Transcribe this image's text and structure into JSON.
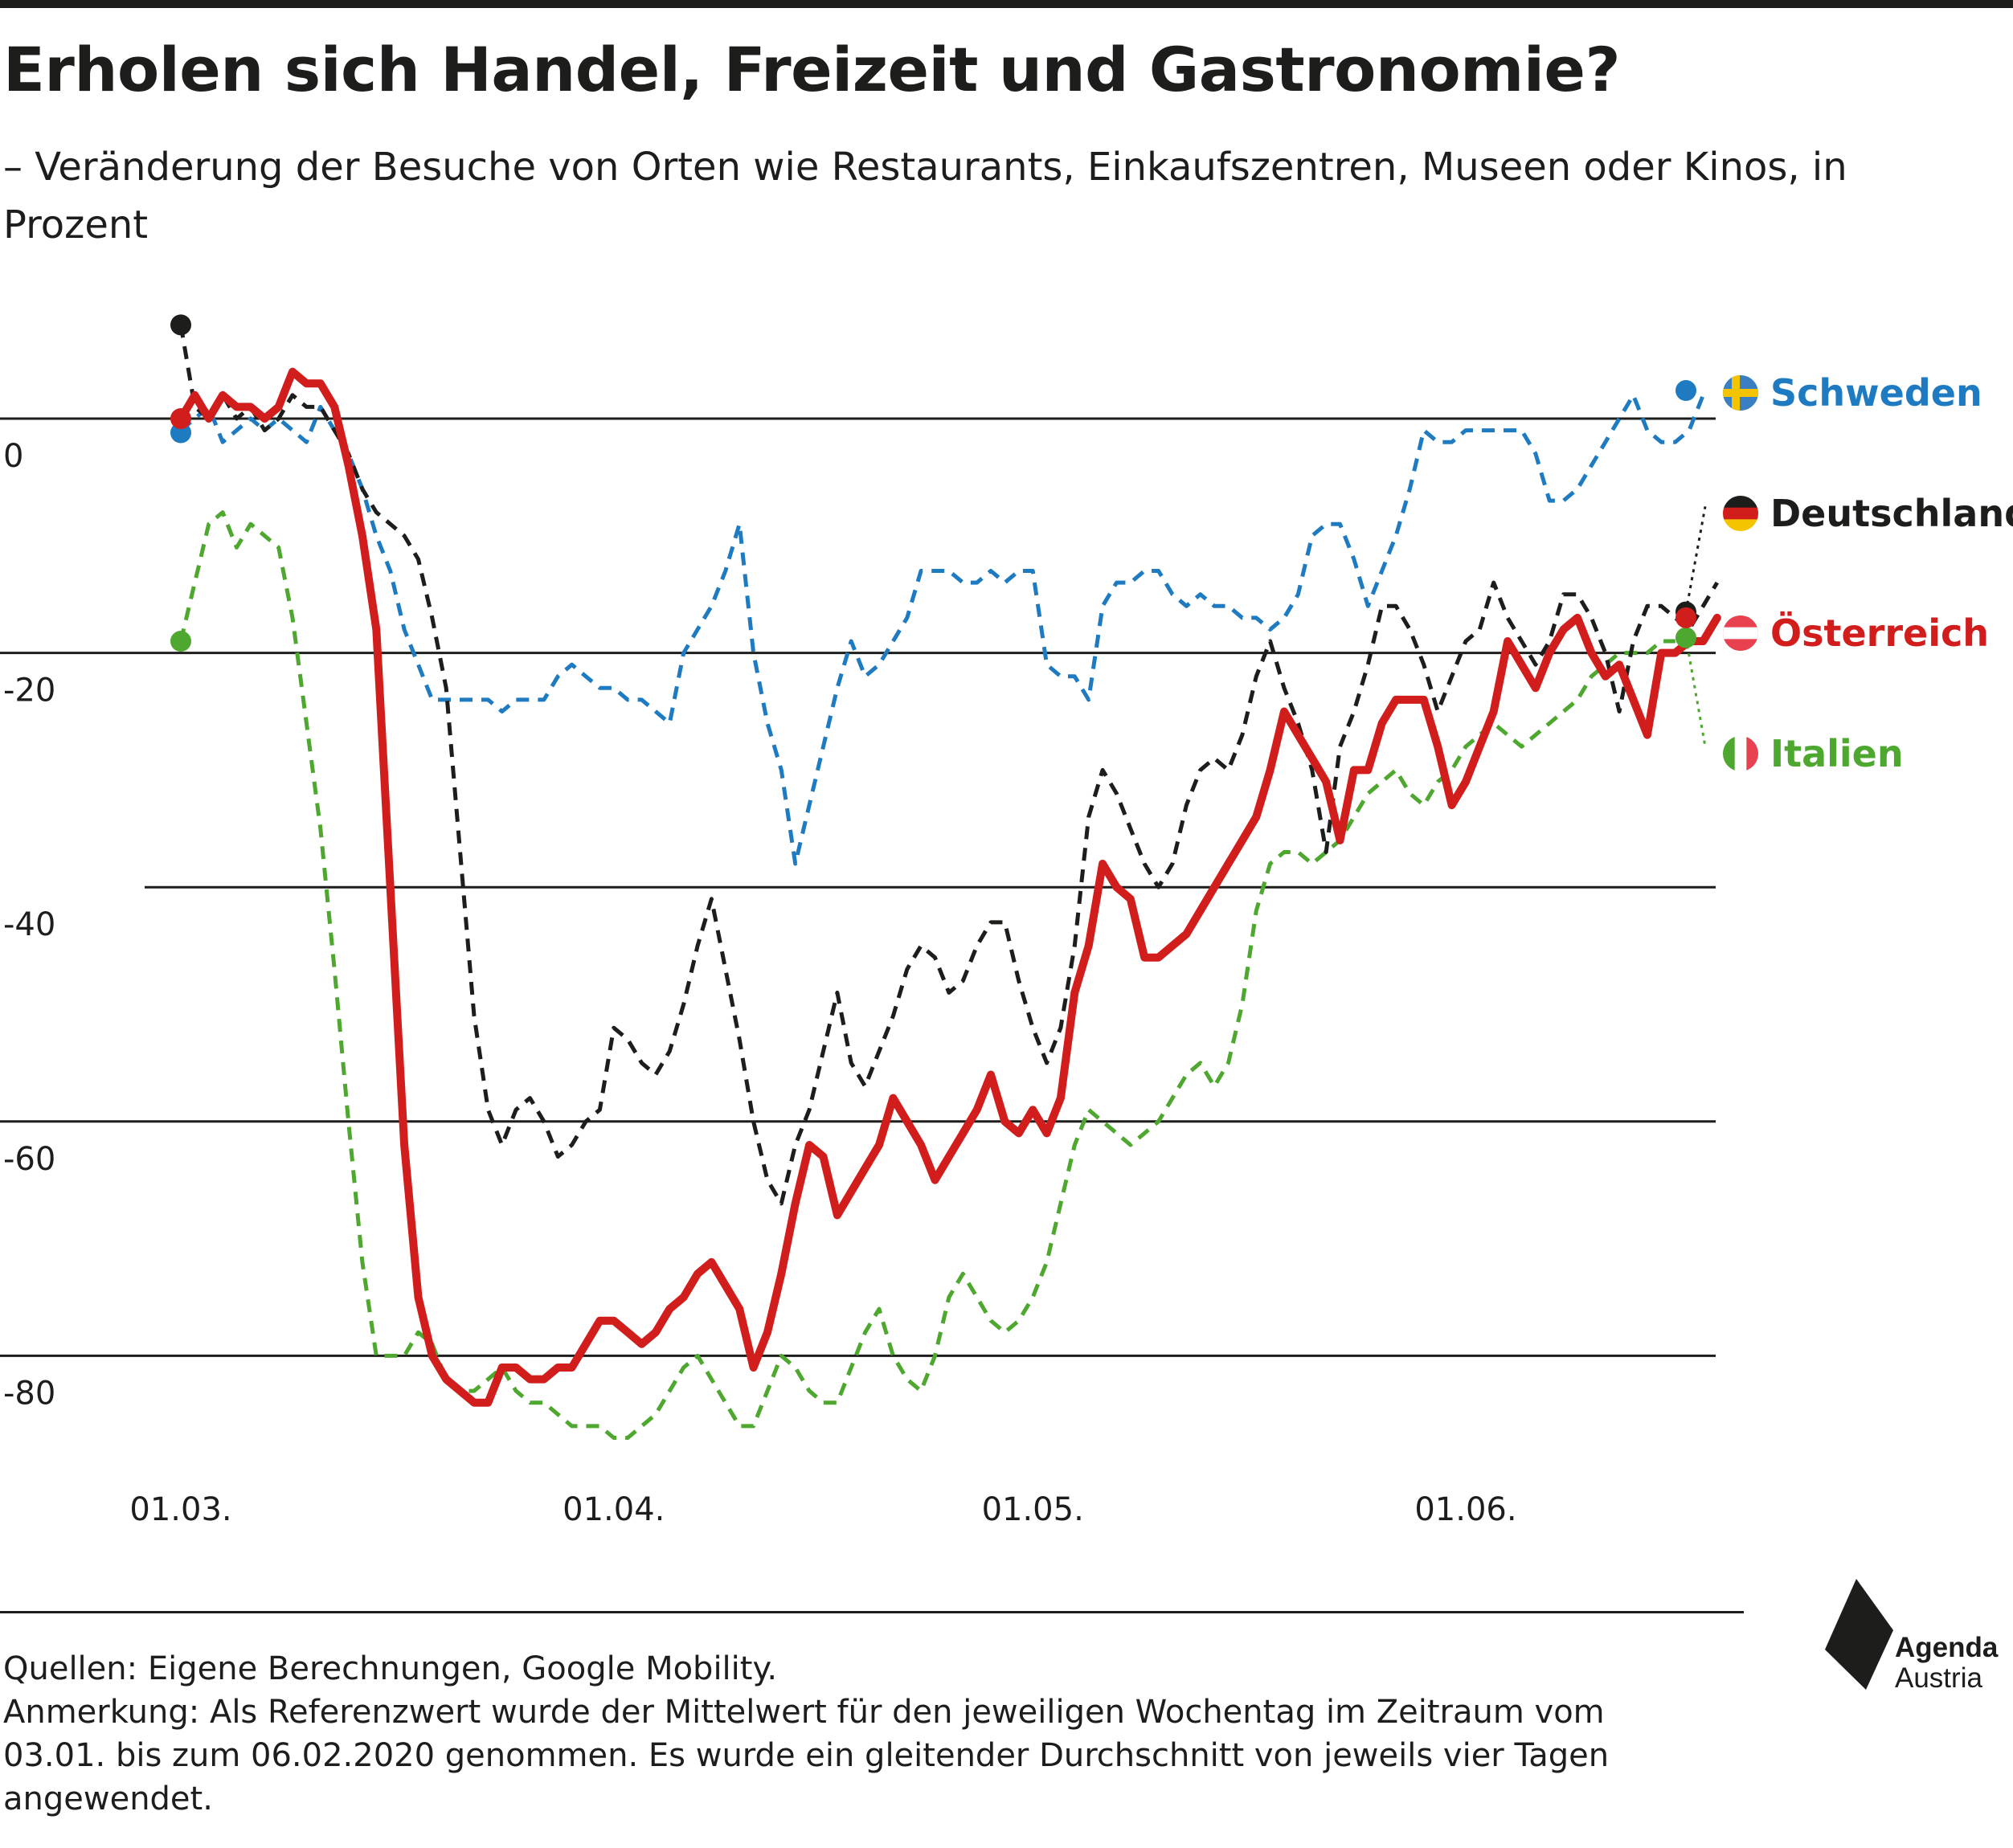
{
  "title": "Erholen sich Handel, Freizeit und Gastronomie?",
  "subtitle": "– Veränderung der Besuche von Orten wie Restaurants, Einkaufszentren, Museen oder Kinos, in Prozent",
  "footer": {
    "sources": "Quellen: Eigene Berechnungen, Google Mobility.",
    "note": "Anmerkung: Als Referenzwert wurde der Mittelwert für den jeweiligen Wochentag im Zeitraum vom 03.01. bis zum 06.02.2020 genommen. Es wurde ein gleitender Durchschnitt von jeweils vier Tagen angewendet."
  },
  "logo": {
    "line1": "Agenda",
    "line2": "Austria"
  },
  "chart_data": {
    "type": "line",
    "title": "Erholen sich Handel, Freizeit und Gastronomie?",
    "subtitle": "– Veränderung der Besuche von Orten wie Restaurants, Einkaufszentren, Museen oder Kinos, in Prozent",
    "ylim": [
      -90,
      10
    ],
    "yticks": [
      0,
      -20,
      -40,
      -60,
      -80
    ],
    "xticks": [
      {
        "day": 0,
        "label": "01.03."
      },
      {
        "day": 31,
        "label": "01.04."
      },
      {
        "day": 61,
        "label": "01.05."
      },
      {
        "day": 92,
        "label": "01.06."
      }
    ],
    "grid": true,
    "legend": "right, at line ends",
    "x_start": "01.03.",
    "series": [
      {
        "name": "Schweden",
        "color": "#1f7bc1",
        "dash": true,
        "width": 5,
        "flag": "se",
        "values": [
          -1,
          0,
          1,
          -2,
          -1,
          0,
          -1,
          0,
          -1,
          -2,
          1,
          -1,
          -3,
          -6,
          -10,
          -13,
          -18,
          -21,
          -24,
          -24,
          -24,
          -24,
          -24,
          -25,
          -24,
          -24,
          -24,
          -22,
          -21,
          -22,
          -23,
          -23,
          -24,
          -24,
          -25,
          -26,
          -20,
          -18,
          -16,
          -13,
          -9,
          -20,
          -26,
          -30,
          -38,
          -33,
          -28,
          -23,
          -19,
          -22,
          -21,
          -19,
          -17,
          -13,
          -13,
          -13,
          -14,
          -14,
          -13,
          -14,
          -13,
          -13,
          -21,
          -22,
          -22,
          -24,
          -16,
          -14,
          -14,
          -13,
          -13,
          -15,
          -16,
          -15,
          -16,
          -16,
          -17,
          -17,
          -18,
          -17,
          -15,
          -10,
          -9,
          -9,
          -12,
          -16,
          -13,
          -10,
          -6,
          -1,
          -2,
          -2,
          -1,
          -1,
          -1,
          -1,
          -1,
          -3,
          -7,
          -7,
          -6,
          -4,
          -2,
          0,
          2,
          -1,
          -2,
          -2,
          -1,
          2
        ],
        "start": -1.2,
        "end": 2.4
      },
      {
        "name": "Deutschland",
        "color": "#1d1d1b",
        "dash": true,
        "width": 5,
        "flag": "de",
        "values": [
          8,
          1,
          0,
          2,
          0,
          1,
          -1,
          0,
          2,
          1,
          1,
          -1,
          -3,
          -6,
          -8,
          -9,
          -10,
          -12,
          -17,
          -23,
          -37,
          -51,
          -59,
          -62,
          -59,
          -58,
          -60,
          -63,
          -62,
          -60,
          -59,
          -52,
          -53,
          -55,
          -56,
          -54,
          -50,
          -45,
          -41,
          -47,
          -53,
          -60,
          -65,
          -67,
          -62,
          -59,
          -54,
          -49,
          -55,
          -57,
          -54,
          -51,
          -47,
          -45,
          -46,
          -49,
          -48,
          -45,
          -43,
          -43,
          -48,
          -52,
          -55,
          -52,
          -45,
          -34,
          -30,
          -32,
          -35,
          -38,
          -40,
          -38,
          -33,
          -30,
          -29,
          -30,
          -27,
          -22,
          -19,
          -23,
          -26,
          -30,
          -37,
          -28,
          -25,
          -21,
          -16,
          -16,
          -18,
          -21,
          -25,
          -22,
          -19,
          -18,
          -14,
          -17,
          -19,
          -21,
          -19,
          -15,
          -15,
          -17,
          -20,
          -25,
          -19,
          -16,
          -16,
          -17,
          -18,
          -16,
          -14
        ],
        "start": 8,
        "end": -16.5,
        "tail_end": -7.5
      },
      {
        "name": "Italien",
        "color": "#4ea72e",
        "dash": true,
        "width": 5,
        "flag": "it",
        "values": [
          -19,
          -14,
          -9,
          -8,
          -11,
          -9,
          -10,
          -11,
          -17,
          -26,
          -35,
          -47,
          -60,
          -72,
          -80,
          -80,
          -80,
          -78,
          -79,
          -82,
          -83,
          -83,
          -82,
          -81,
          -83,
          -84,
          -84,
          -85,
          -86,
          -86,
          -86,
          -87,
          -87,
          -86,
          -85,
          -83,
          -81,
          -80,
          -82,
          -84,
          -86,
          -86,
          -83,
          -80,
          -81,
          -83,
          -84,
          -84,
          -81,
          -78,
          -76,
          -80,
          -82,
          -83,
          -80,
          -75,
          -73,
          -75,
          -77,
          -78,
          -77,
          -75,
          -72,
          -67,
          -62,
          -59,
          -60,
          -61,
          -62,
          -61,
          -60,
          -58,
          -56,
          -55,
          -57,
          -55,
          -50,
          -42,
          -38,
          -37,
          -37,
          -38,
          -37,
          -36,
          -34,
          -32,
          -31,
          -30,
          -32,
          -33,
          -31,
          -30,
          -28,
          -27,
          -26,
          -27,
          -28,
          -27,
          -26,
          -25,
          -24,
          -22,
          -21,
          -20,
          -20,
          -20,
          -19,
          -19
        ],
        "start": -19,
        "end": -18.7,
        "tail_end": -28
      },
      {
        "name": "Österreich",
        "color": "#d11d1b",
        "dash": false,
        "width": 10,
        "flag": "at",
        "values": [
          0,
          2,
          0,
          2,
          1,
          1,
          0,
          1,
          4,
          3,
          3,
          1,
          -4,
          -10,
          -18,
          -40,
          -62,
          -75,
          -80,
          -82,
          -83,
          -84,
          -84,
          -81,
          -81,
          -82,
          -82,
          -81,
          -81,
          -79,
          -77,
          -77,
          -78,
          -79,
          -78,
          -76,
          -75,
          -73,
          -72,
          -74,
          -76,
          -81,
          -78,
          -73,
          -67,
          -62,
          -63,
          -68,
          -66,
          -64,
          -62,
          -58,
          -60,
          -62,
          -65,
          -63,
          -61,
          -59,
          -56,
          -60,
          -61,
          -59,
          -61,
          -58,
          -49,
          -45,
          -38,
          -40,
          -41,
          -46,
          -46,
          -45,
          -44,
          -42,
          -40,
          -38,
          -36,
          -34,
          -30,
          -25,
          -27,
          -29,
          -31,
          -36,
          -30,
          -30,
          -26,
          -24,
          -24,
          -24,
          -28,
          -33,
          -31,
          -28,
          -25,
          -19,
          -21,
          -23,
          -20,
          -18,
          -17,
          -20,
          -22,
          -21,
          -24,
          -27,
          -20,
          -20,
          -19,
          -19,
          -17
        ],
        "start": 0,
        "end": -17
      }
    ]
  }
}
